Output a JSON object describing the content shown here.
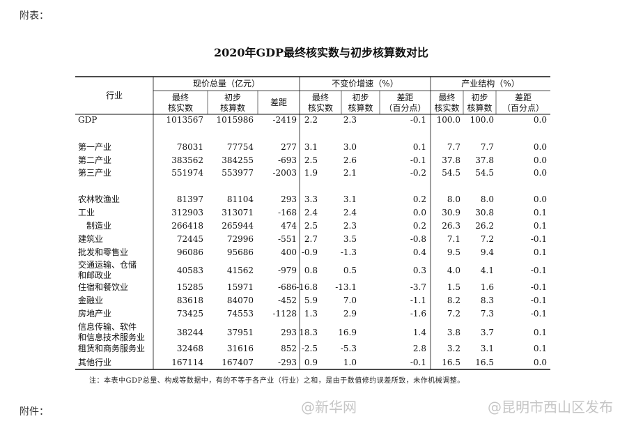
{
  "header": {
    "prefix": "附表：",
    "title": "2020年GDP最终核实数与初步核算数对比"
  },
  "table": {
    "row_header": "行业",
    "groups": [
      "现价总量（亿元）",
      "不变价增速（%）",
      "产业结构（%）"
    ],
    "columns": [
      "最终\n核实数",
      "初步\n核算数",
      "差距",
      "最终\n核实数",
      "初步\n核算数",
      "差距\n（百分点）",
      "最终\n核实数",
      "初步\n核算数",
      "差距\n（百分点）"
    ],
    "rows": [
      {
        "label": "GDP",
        "values": [
          "1013567",
          "1015986",
          "-2419",
          "2.2",
          "2.3",
          "-0.1",
          "100.0",
          "100.0",
          "0.0"
        ]
      },
      {
        "label": "第一产业",
        "values": [
          "78031",
          "77754",
          "277",
          "3.1",
          "3.0",
          "0.1",
          "7.7",
          "7.7",
          "0.0"
        ]
      },
      {
        "label": "第二产业",
        "values": [
          "383562",
          "384255",
          "-693",
          "2.5",
          "2.6",
          "-0.1",
          "37.8",
          "37.8",
          "0.0"
        ]
      },
      {
        "label": "第三产业",
        "values": [
          "551974",
          "553977",
          "-2003",
          "1.9",
          "2.1",
          "-0.2",
          "54.5",
          "54.5",
          "0.0"
        ]
      },
      {
        "label": "农林牧渔业",
        "values": [
          "81397",
          "81104",
          "293",
          "3.3",
          "3.1",
          "0.2",
          "8.0",
          "8.0",
          "0.0"
        ]
      },
      {
        "label": "工业",
        "values": [
          "312903",
          "313071",
          "-168",
          "2.4",
          "2.4",
          "0.0",
          "30.9",
          "30.8",
          "0.1"
        ]
      },
      {
        "label": "制造业",
        "values": [
          "266418",
          "265944",
          "474",
          "2.5",
          "2.3",
          "0.2",
          "26.3",
          "26.2",
          "0.1"
        ]
      },
      {
        "label": "建筑业",
        "values": [
          "72445",
          "72996",
          "-551",
          "2.7",
          "3.5",
          "-0.8",
          "7.1",
          "7.2",
          "-0.1"
        ]
      },
      {
        "label": "批发和零售业",
        "values": [
          "96086",
          "95686",
          "400",
          "-0.9",
          "-1.3",
          "0.4",
          "9.5",
          "9.4",
          "0.1"
        ]
      },
      {
        "label": "交通运输、仓储\n和邮政业",
        "values": [
          "40583",
          "41562",
          "-979",
          "0.8",
          "0.5",
          "0.3",
          "4.0",
          "4.1",
          "-0.1"
        ]
      },
      {
        "label": "住宿和餐饮业",
        "values": [
          "15285",
          "15971",
          "-686",
          "-16.8",
          "-13.1",
          "-3.7",
          "1.5",
          "1.6",
          "-0.1"
        ]
      },
      {
        "label": "金融业",
        "values": [
          "83618",
          "84070",
          "-452",
          "5.9",
          "7.0",
          "-1.1",
          "8.2",
          "8.3",
          "-0.1"
        ]
      },
      {
        "label": "房地产业",
        "values": [
          "73425",
          "74553",
          "-1128",
          "1.3",
          "2.9",
          "-1.6",
          "7.2",
          "7.3",
          "-0.1"
        ]
      },
      {
        "label": "信息传输、软件\n和信息技术服务业",
        "values": [
          "38244",
          "37951",
          "293",
          "18.3",
          "16.9",
          "1.4",
          "3.8",
          "3.7",
          "0.1"
        ]
      },
      {
        "label": "租赁和商务服务业",
        "values": [
          "32468",
          "31616",
          "852",
          "-2.5",
          "-5.3",
          "2.8",
          "3.2",
          "3.1",
          "0.1"
        ]
      },
      {
        "label": "其他行业",
        "values": [
          "167114",
          "167407",
          "-293",
          "0.9",
          "1.0",
          "-0.1",
          "16.5",
          "16.5",
          "0.0"
        ]
      }
    ],
    "note": "注：本表中GDP总量、构成等数据中，有的不等于各产业（行业）之和，是由于数值修约误差所致，未作机械调整。"
  },
  "footer": {
    "attachment": "附件：",
    "watermarks": [
      "@新华网",
      "@昆明市西山区发布"
    ]
  }
}
